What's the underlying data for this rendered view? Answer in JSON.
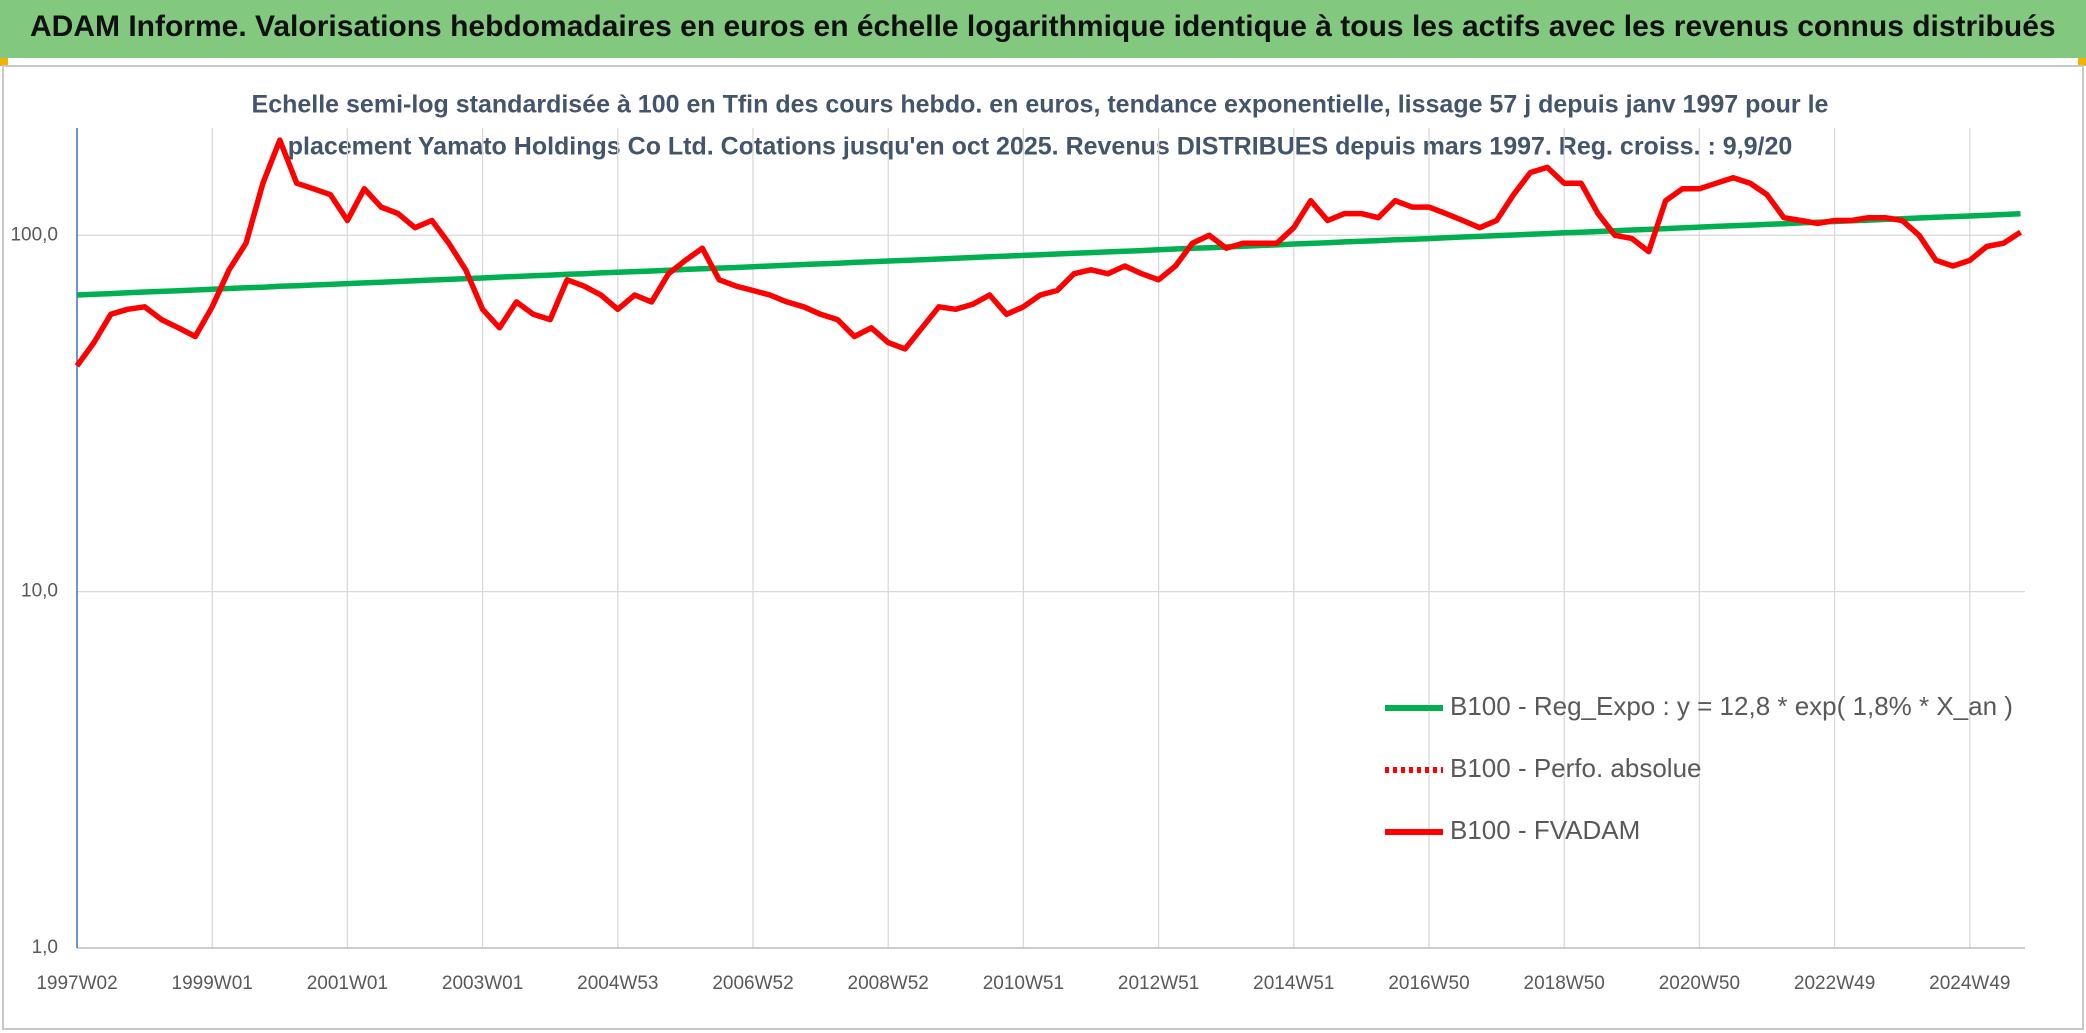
{
  "header": {
    "title": "ADAM Informe. Valorisations hebdomadaires en euros en échelle logarithmique identique à tous les actifs avec les revenus connus distribués"
  },
  "chart_data": {
    "type": "line",
    "title": [
      "Echelle semi-log standardisée à 100 en Tfin des cours hebdo. en euros, tendance exponentielle, lissage 57 j depuis janv 1997 pour le",
      "placement Yamato Holdings Co Ltd. Cotations jusqu'en oct 2025. Revenus DISTRIBUES depuis mars 1997. Reg. croiss. : 9,9/20"
    ],
    "categories": [
      "1997W02",
      null,
      null,
      null,
      null,
      null,
      null,
      null,
      "1999W01",
      null,
      null,
      null,
      null,
      null,
      null,
      null,
      "2001W01",
      null,
      null,
      null,
      null,
      null,
      null,
      null,
      "2003W01",
      null,
      null,
      null,
      null,
      null,
      null,
      null,
      "2004W53",
      null,
      null,
      null,
      null,
      null,
      null,
      null,
      "2006W52",
      null,
      null,
      null,
      null,
      null,
      null,
      null,
      "2008W52",
      null,
      null,
      null,
      null,
      null,
      null,
      null,
      "2010W51",
      null,
      null,
      null,
      null,
      null,
      null,
      null,
      "2012W51",
      null,
      null,
      null,
      null,
      null,
      null,
      null,
      "2014W51",
      null,
      null,
      null,
      null,
      null,
      null,
      null,
      "2016W50",
      null,
      null,
      null,
      null,
      null,
      null,
      null,
      "2018W50",
      null,
      null,
      null,
      null,
      null,
      null,
      null,
      "2020W50",
      null,
      null,
      null,
      null,
      null,
      null,
      null,
      "2022W49",
      null,
      null,
      null,
      null,
      null,
      null,
      null,
      "2024W49",
      null,
      null,
      null
    ],
    "series": [
      {
        "name": "B100 - Reg_Expo : y = 12,8 * exp( 1,8% *  X_an )",
        "color": "#00b050",
        "style": "solid",
        "values": [
          68.0,
          68.3,
          68.6,
          69.0,
          69.3,
          69.6,
          69.9,
          70.2,
          70.6,
          70.9,
          71.2,
          71.5,
          71.9,
          72.2,
          72.5,
          72.8,
          73.2,
          73.5,
          73.8,
          74.2,
          74.5,
          74.9,
          75.2,
          75.6,
          75.9,
          76.3,
          76.6,
          77.0,
          77.3,
          77.7,
          78.0,
          78.4,
          78.7,
          79.1,
          79.4,
          79.8,
          80.2,
          80.5,
          80.9,
          81.2,
          81.6,
          82.0,
          82.4,
          82.8,
          83.1,
          83.5,
          83.9,
          84.3,
          84.7,
          85.0,
          85.4,
          85.8,
          86.2,
          86.6,
          87.0,
          87.4,
          87.8,
          88.2,
          88.6,
          89.0,
          89.4,
          89.8,
          90.2,
          90.6,
          91.1,
          91.5,
          91.9,
          92.3,
          92.7,
          93.2,
          93.6,
          94.0,
          94.5,
          94.9,
          95.3,
          95.8,
          96.2,
          96.6,
          97.1,
          97.5,
          97.9,
          98.4,
          98.9,
          99.3,
          99.8,
          100.2,
          100.7,
          101.1,
          101.6,
          102.0,
          102.5,
          103.0,
          103.5,
          103.9,
          104.4,
          104.9,
          105.4,
          105.9,
          106.3,
          106.8,
          107.3,
          107.8,
          108.3,
          108.8,
          109.3,
          109.8,
          110.3,
          110.8,
          111.3,
          111.8,
          112.3,
          112.8,
          113.3,
          113.8,
          114.4,
          114.9
        ]
      },
      {
        "name": "B100 - Perfo. absolue",
        "color": "#ff0000",
        "style": "dotted",
        "values": [
          null,
          null,
          null,
          null,
          null,
          null,
          null,
          null,
          null,
          null,
          null,
          null,
          null,
          null,
          null,
          null,
          null,
          null,
          null,
          null,
          null,
          null,
          null,
          null,
          null,
          null,
          null,
          null,
          null,
          null,
          null,
          null,
          null,
          null,
          null,
          null,
          null,
          null,
          null,
          null,
          null,
          null,
          null,
          null,
          null,
          null,
          null,
          null,
          null,
          null,
          null,
          null,
          null,
          null,
          null,
          null,
          null,
          null,
          null,
          null,
          null,
          null,
          null,
          null,
          null,
          null,
          null,
          null,
          null,
          null,
          null,
          null,
          null,
          null,
          null,
          null,
          null,
          null,
          null,
          null,
          null,
          null,
          null,
          null,
          null,
          null,
          null,
          null,
          null,
          null,
          null,
          null,
          null,
          null,
          null,
          null,
          null,
          null,
          null,
          null,
          null,
          null,
          null,
          null,
          null,
          null,
          null,
          null,
          null,
          null,
          null,
          null,
          null,
          null,
          null,
          null
        ]
      },
      {
        "name": "B100 - FVADAM",
        "color": "#ff0000",
        "style": "solid",
        "values": [
          43,
          50,
          60,
          62,
          63,
          58,
          55,
          52,
          63,
          80,
          95,
          140,
          185,
          140,
          135,
          130,
          110,
          135,
          120,
          115,
          105,
          110,
          95,
          80,
          62,
          55,
          65,
          60,
          58,
          75,
          72,
          68,
          62,
          68,
          65,
          78,
          85,
          92,
          75,
          72,
          70,
          68,
          65,
          63,
          60,
          58,
          52,
          55,
          50,
          48,
          55,
          63,
          62,
          64,
          68,
          60,
          63,
          68,
          70,
          78,
          80,
          78,
          82,
          78,
          75,
          82,
          95,
          100,
          92,
          95,
          95,
          95,
          105,
          125,
          110,
          115,
          115,
          112,
          125,
          120,
          120,
          115,
          110,
          105,
          110,
          130,
          150,
          155,
          140,
          140,
          115,
          100,
          98,
          90,
          125,
          135,
          135,
          140,
          145,
          140,
          130,
          112,
          110,
          108,
          110,
          110,
          112,
          112,
          110,
          100,
          85,
          82,
          85,
          93,
          95,
          102
        ]
      }
    ],
    "ylim": [
      1,
      200
    ],
    "log_y": true,
    "yticks": [
      {
        "value": 1,
        "label": "1,0"
      },
      {
        "value": 10,
        "label": "10,0"
      },
      {
        "value": 100,
        "label": "100,0"
      }
    ],
    "grid": true,
    "legend": "lower right"
  }
}
